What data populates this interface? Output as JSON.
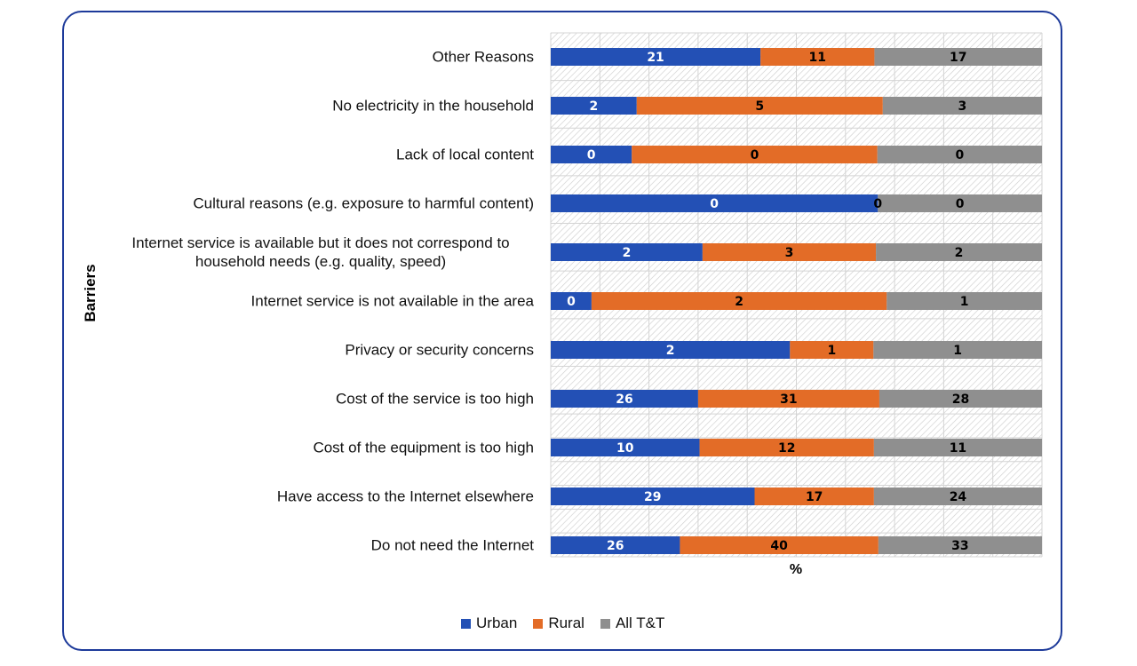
{
  "chart_data": {
    "type": "bar",
    "orientation": "horizontal",
    "stacking": "percent",
    "title": "",
    "xlabel": "%",
    "ylabel": "Barriers",
    "xlim": [
      0,
      100
    ],
    "grid": true,
    "legend_position": "bottom",
    "categories": [
      "Other Reasons",
      "No electricity in the household",
      "Lack of local content",
      "Cultural reasons  (e.g. exposure to harmful content)",
      "Internet service is available but it does not correspond to household needs (e.g. quality, speed)",
      "Internet service is not available in the area",
      "Privacy or security concerns",
      "Cost of the service is too high",
      "Cost of the equipment is too high",
      "Have access to the Internet elsewhere",
      "Do not need the Internet"
    ],
    "category_lines": [
      [
        "Other Reasons"
      ],
      [
        "No electricity in the household"
      ],
      [
        "Lack of local content"
      ],
      [
        "Cultural reasons  (e.g. exposure to harmful content)"
      ],
      [
        "Internet service is available but it does not correspond to",
        "household needs (e.g. quality, speed)"
      ],
      [
        "Internet service is not available in the area"
      ],
      [
        "Privacy or security concerns"
      ],
      [
        "Cost of the service is too high"
      ],
      [
        "Cost of the equipment is too high"
      ],
      [
        "Have access to the Internet elsewhere"
      ],
      [
        "Do not need the Internet"
      ]
    ],
    "series": [
      {
        "name": "Urban",
        "color": "#2350b5",
        "label_color": "#ffffff",
        "values": [
          21,
          2,
          0,
          0,
          2,
          0,
          2,
          26,
          10,
          29,
          26
        ],
        "visual_share": [
          0.427,
          0.175,
          0.165,
          0.666,
          0.309,
          0.083,
          0.487,
          0.3,
          0.303,
          0.415,
          0.263
        ]
      },
      {
        "name": "Rural",
        "color": "#e36c27",
        "label_color": "#000000",
        "values": [
          11,
          5,
          0,
          0,
          3,
          2,
          1,
          31,
          12,
          17,
          40
        ],
        "visual_share": [
          0.232,
          0.501,
          0.5,
          0.0,
          0.353,
          0.601,
          0.17,
          0.369,
          0.355,
          0.243,
          0.404
        ]
      },
      {
        "name": "All T&T",
        "color": "#8f8f8f",
        "label_color": "#000000",
        "values": [
          17,
          3,
          0,
          0,
          2,
          1,
          1,
          28,
          11,
          24,
          33
        ],
        "visual_share": [
          0.341,
          0.324,
          0.335,
          0.334,
          0.338,
          0.316,
          0.343,
          0.331,
          0.342,
          0.342,
          0.333
        ]
      }
    ]
  },
  "legend": [
    {
      "label": "Urban",
      "color": "#2350b5"
    },
    {
      "label": "Rural",
      "color": "#e36c27"
    },
    {
      "label": "All T&T",
      "color": "#8f8f8f"
    }
  ],
  "frame_color": "#1d3a9a"
}
